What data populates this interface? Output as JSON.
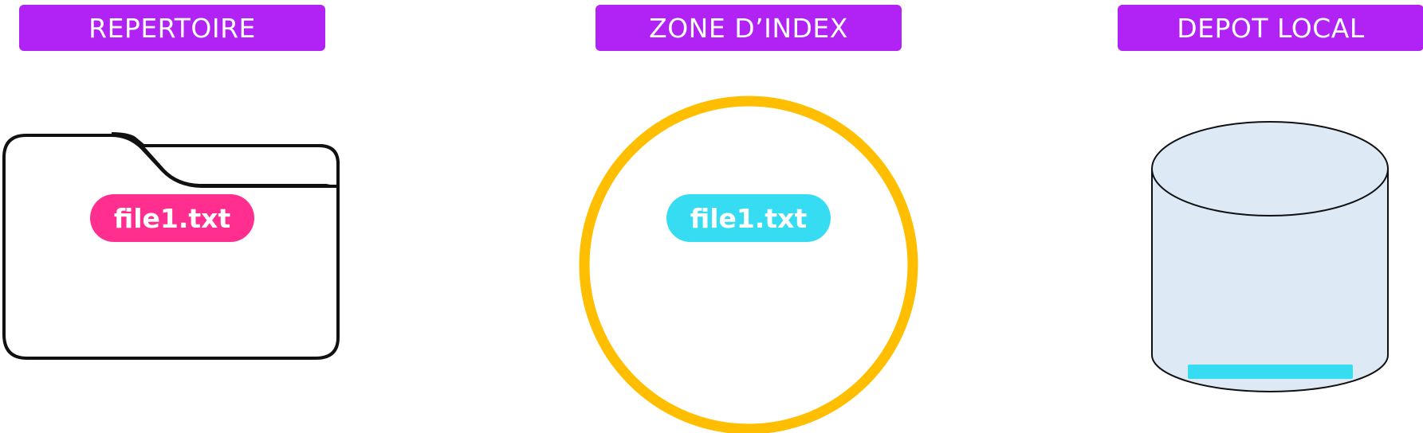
{
  "sections": {
    "repertoire": {
      "label": "REPERTOIRE",
      "file": "file1.txt"
    },
    "zone_index": {
      "label": "ZONE D’INDEX",
      "file": "file1.txt"
    },
    "depot_local": {
      "label": "DEPOT LOCAL"
    }
  },
  "colors": {
    "header_bg": "#b122f5",
    "header_text": "#ffffff",
    "folder_file_pill": "#ff2e8f",
    "index_file_pill": "#36dcf2",
    "index_ring": "#ffbe00",
    "repo_fill": "#dde9f5",
    "repo_stroke": "#111111",
    "repo_commit_bar": "#36dcf2"
  },
  "icons": {
    "working_directory": "folder-icon",
    "staging_area": "circle-ring",
    "local_repository": "database-cylinder-icon"
  }
}
